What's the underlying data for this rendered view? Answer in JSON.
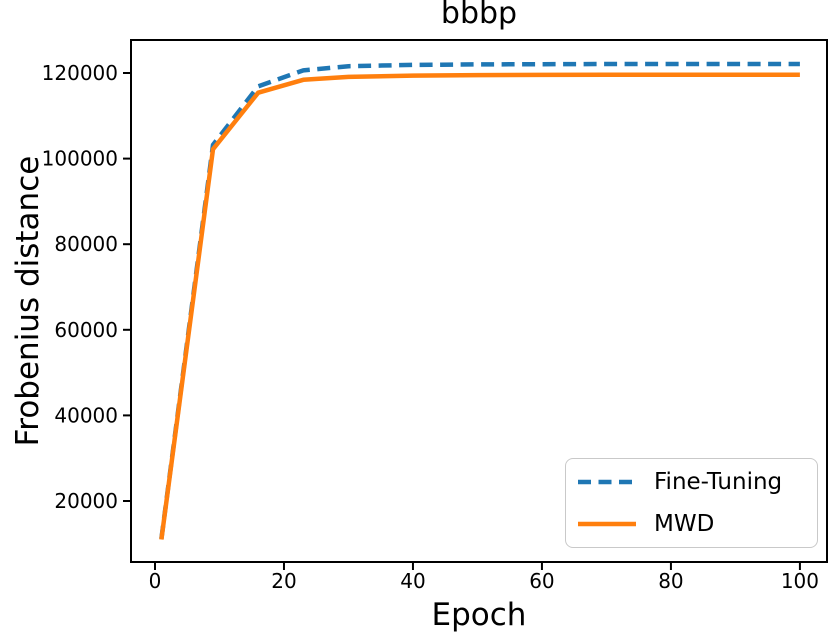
{
  "figure": {
    "title": "bbbp",
    "xlabel": "Epoch",
    "ylabel": "Frobenius distance"
  },
  "legend": {
    "position": "lower right",
    "items": [
      {
        "label": "Fine-Tuning",
        "color": "#1f77b4",
        "style": "dashed"
      },
      {
        "label": "MWD",
        "color": "#ff7f0e",
        "style": "solid"
      }
    ]
  },
  "chart_data": {
    "type": "line",
    "title": "bbbp",
    "xlabel": "Epoch",
    "ylabel": "Frobenius distance",
    "x": [
      1,
      9,
      16,
      23,
      30,
      40,
      50,
      60,
      70,
      80,
      90,
      100
    ],
    "series": [
      {
        "name": "Fine-Tuning",
        "color": "#1f77b4",
        "dash": "dashed",
        "values": [
          11200,
          103200,
          116900,
          120600,
          121600,
          121900,
          122000,
          122050,
          122100,
          122100,
          122100,
          122100
        ]
      },
      {
        "name": "MWD",
        "color": "#ff7f0e",
        "dash": "solid",
        "values": [
          11000,
          102200,
          115400,
          118400,
          119100,
          119400,
          119500,
          119550,
          119600,
          119600,
          119600,
          119600
        ]
      }
    ],
    "xticks": [
      0,
      20,
      40,
      60,
      80,
      100
    ],
    "yticks": [
      20000,
      40000,
      60000,
      80000,
      100000,
      120000
    ],
    "xlim": [
      -3.72,
      104.2
    ],
    "ylim": [
      5748,
      127710
    ],
    "grid": false,
    "legend_position": "lower right"
  }
}
